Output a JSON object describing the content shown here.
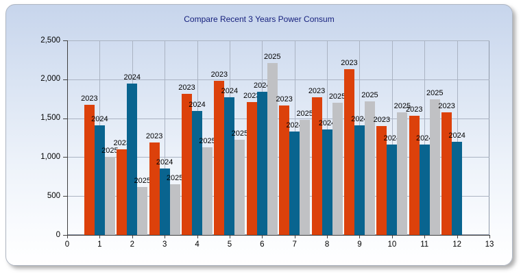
{
  "window": {
    "title": "Compare Recent 3 Years Power Consum"
  },
  "colors": {
    "title_text": "#141e7c",
    "axis_text": "#000000",
    "gridline": "#aab3c2",
    "axis_line": "#3f3f3f",
    "series_2023": "#dc410b",
    "series_2024": "#09648f",
    "series_2025": "#c0c1c4"
  },
  "chart_data": {
    "type": "bar",
    "title": "Compare Recent 3 Years Power Consum",
    "xlabel": "",
    "ylabel": "",
    "xlim": [
      0,
      13
    ],
    "ylim": [
      0,
      2500
    ],
    "grid": true,
    "legend_position": "none",
    "point_label_text": "series-name",
    "categories": [
      1,
      2,
      3,
      4,
      5,
      6,
      7,
      8,
      9,
      10,
      11,
      12
    ],
    "x_tick_labels": [
      "0",
      "1",
      "2",
      "3",
      "4",
      "5",
      "6",
      "7",
      "8",
      "9",
      "10",
      "11",
      "12",
      "13"
    ],
    "y_ticks": [
      {
        "value": 0,
        "label": "0"
      },
      {
        "value": 500,
        "label": "500"
      },
      {
        "value": 1000,
        "label": "1,000"
      },
      {
        "value": 1500,
        "label": "1,500"
      },
      {
        "value": 2000,
        "label": "2,000"
      },
      {
        "value": 2500,
        "label": "2,500"
      }
    ],
    "series": [
      {
        "name": "2023",
        "color": "#dc410b",
        "values": [
          1675,
          1100,
          1190,
          1815,
          1985,
          1705,
          1665,
          1770,
          2130,
          1400,
          1530,
          1580
        ]
      },
      {
        "name": "2024",
        "color": "#09648f",
        "values": [
          1410,
          1945,
          855,
          1590,
          1770,
          1840,
          1330,
          1355,
          1405,
          1165,
          1160,
          1195
        ]
      },
      {
        "name": "2025",
        "color": "#c0c1c4",
        "values": [
          1000,
          620,
          650,
          1125,
          1225,
          2210,
          1475,
          1695,
          1720,
          1580,
          1740,
          null
        ]
      }
    ]
  }
}
